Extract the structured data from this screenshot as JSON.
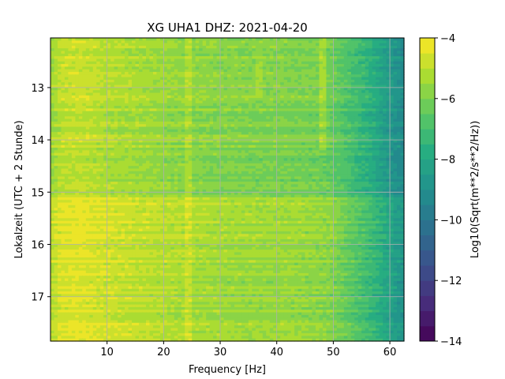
{
  "chart_data": {
    "type": "heatmap",
    "title": "XG UHA1  DHZ: 2021-04-20",
    "xlabel": "Frequency [Hz]",
    "ylabel": "Lokalzeit (UTC + 2 Stunde)",
    "colorbar_label": "Log10(Sqrt(m**2/s**2/Hz))",
    "xlim": [
      0,
      62.5
    ],
    "ylim": [
      12.05,
      17.85
    ],
    "y_inverted": true,
    "x_ticks": [
      10,
      20,
      30,
      40,
      50,
      60
    ],
    "x_tick_labels": [
      "10",
      "20",
      "30",
      "40",
      "50",
      "60"
    ],
    "y_ticks": [
      13,
      14,
      15,
      16,
      17
    ],
    "y_tick_labels": [
      "13",
      "14",
      "15",
      "16",
      "17"
    ],
    "color_range": [
      -14,
      -4
    ],
    "colorbar_ticks": [
      -4,
      -6,
      -8,
      -10,
      -12,
      -14
    ],
    "colorbar_tick_labels": [
      "−4",
      "−6",
      "−8",
      "−10",
      "−12",
      "−14"
    ],
    "colormap": "viridis",
    "grid": true,
    "grid_color": "#b0b0b0",
    "frequency_profile": {
      "x": [
        0,
        2,
        5,
        10,
        15,
        20,
        25,
        30,
        35,
        40,
        45,
        48,
        50,
        52,
        54,
        56,
        58,
        60,
        62.5
      ],
      "value": [
        -5.3,
        -4.7,
        -4.6,
        -4.9,
        -5.1,
        -5.3,
        -5.5,
        -5.6,
        -5.7,
        -5.7,
        -5.8,
        -5.9,
        -6.1,
        -6.5,
        -6.9,
        -7.3,
        -7.8,
        -8.4,
        -9.0
      ]
    },
    "time_offsets": {
      "y": [
        12.05,
        15.0,
        15.15,
        16.0,
        17.0,
        17.85
      ],
      "offset": [
        -0.2,
        -0.3,
        0.35,
        0.3,
        0.15,
        0.2
      ]
    },
    "spectral_lines": [
      {
        "x": 24.5,
        "y_range": [
          12.05,
          17.85
        ],
        "delta": 0.5
      },
      {
        "x": 48.0,
        "y_range": [
          12.05,
          14.2
        ],
        "delta": 0.7
      },
      {
        "x": 37.0,
        "y_range": [
          12.3,
          13.2
        ],
        "delta": 0.4
      }
    ]
  }
}
